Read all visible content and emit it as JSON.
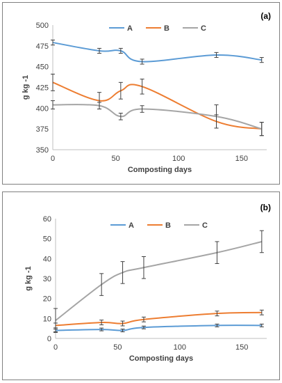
{
  "chart_data": [
    {
      "type": "line",
      "panel_label": "(a)",
      "title": "",
      "xlabel": "Composting days",
      "ylabel": "g kg -1",
      "xlim": [
        0,
        170
      ],
      "ylim": [
        350,
        500
      ],
      "xticks": [
        0,
        50,
        100,
        150
      ],
      "yticks": [
        350,
        375,
        400,
        425,
        450,
        475,
        500
      ],
      "grid": false,
      "legend_position": "top",
      "series": [
        {
          "name": "A",
          "color": "#5b9bd5",
          "x": [
            0,
            37,
            54,
            71,
            130,
            166
          ],
          "y": [
            479,
            469,
            469,
            456,
            464,
            458
          ],
          "err": [
            3,
            3,
            3,
            3,
            3,
            3
          ]
        },
        {
          "name": "B",
          "color": "#ed7d31",
          "x": [
            0,
            37,
            54,
            71,
            130,
            166
          ],
          "y": [
            431,
            409,
            421,
            426,
            384,
            375
          ],
          "err": [
            10,
            10,
            10,
            9,
            8,
            8
          ]
        },
        {
          "name": "C",
          "color": "#a5a5a5",
          "x": [
            0,
            37,
            54,
            71,
            130,
            166
          ],
          "y": [
            404,
            403,
            390,
            399,
            390,
            375
          ],
          "err": [
            5,
            4,
            4,
            4,
            14,
            8
          ]
        }
      ]
    },
    {
      "type": "line",
      "panel_label": "(b)",
      "title": "",
      "xlabel": "Composting days",
      "ylabel": "g kg -1",
      "xlim": [
        0,
        170
      ],
      "ylim": [
        0,
        60
      ],
      "xticks": [
        0,
        50,
        100,
        150
      ],
      "yticks": [
        0,
        10,
        20,
        30,
        40,
        50,
        60
      ],
      "grid": false,
      "legend_position": "top",
      "series": [
        {
          "name": "A",
          "color": "#5b9bd5",
          "x": [
            0,
            37,
            54,
            71,
            130,
            166
          ],
          "y": [
            4.0,
            4.5,
            4.0,
            5.5,
            6.5,
            6.5
          ],
          "err": [
            0.7,
            0.7,
            0.7,
            0.7,
            0.7,
            0.7
          ]
        },
        {
          "name": "B",
          "color": "#ed7d31",
          "x": [
            0,
            37,
            54,
            71,
            130,
            166
          ],
          "y": [
            6.5,
            8.0,
            7.5,
            9.5,
            12.5,
            13.0
          ],
          "err": [
            1.2,
            1.2,
            1.2,
            1.2,
            1.2,
            1.2
          ]
        },
        {
          "name": "C",
          "color": "#a5a5a5",
          "x": [
            0,
            37,
            54,
            71,
            130,
            166
          ],
          "y": [
            9.0,
            27.0,
            33.0,
            35.5,
            43.0,
            48.5
          ],
          "err": [
            6.0,
            5.5,
            5.5,
            5.5,
            5.5,
            5.5
          ]
        }
      ]
    }
  ]
}
